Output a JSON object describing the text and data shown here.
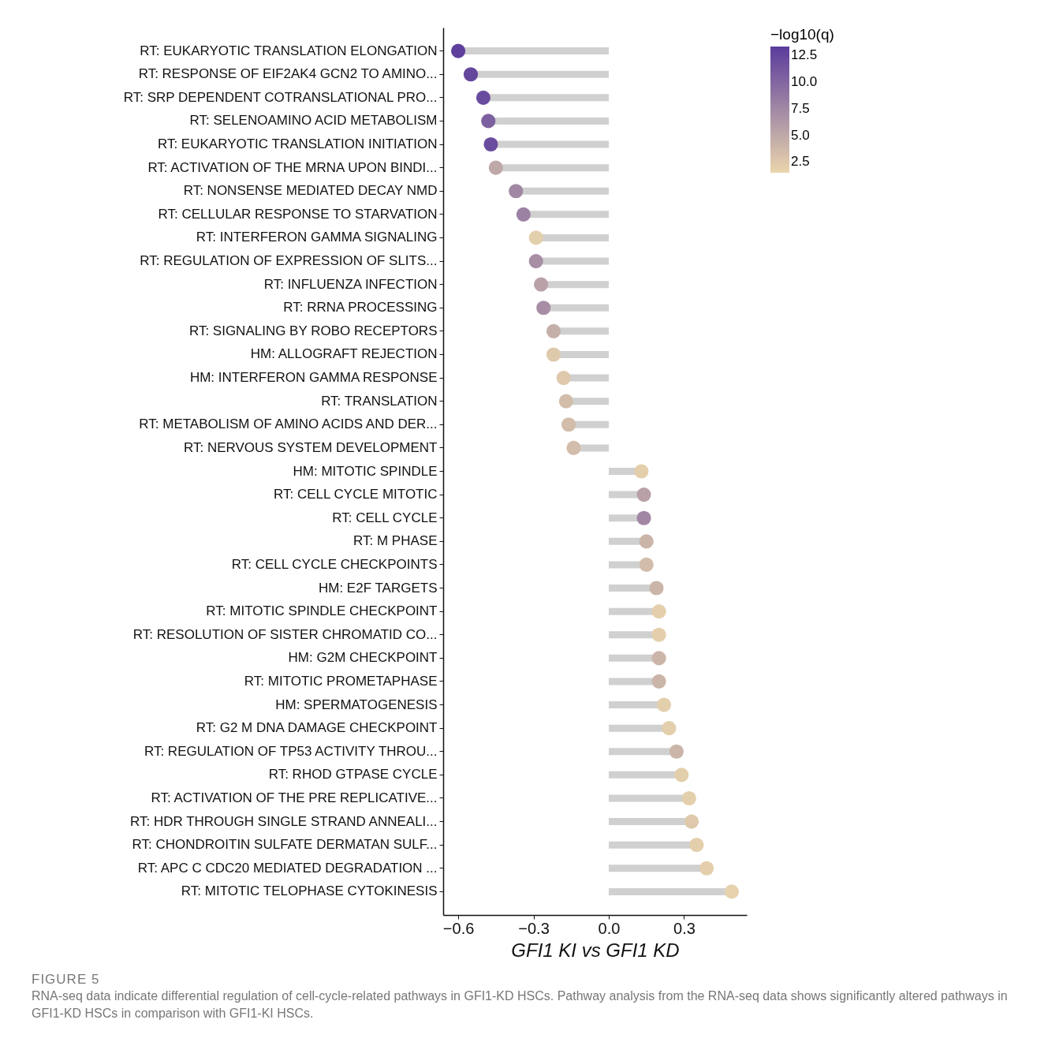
{
  "chart_data": {
    "type": "lollipop",
    "orientation": "horizontal",
    "categories": [
      "RT: EUKARYOTIC TRANSLATION ELONGATION",
      "RT: RESPONSE OF EIF2AK4 GCN2 TO AMINO...",
      "RT: SRP DEPENDENT COTRANSLATIONAL PRO...",
      "RT: SELENOAMINO ACID METABOLISM",
      "RT: EUKARYOTIC TRANSLATION INITIATION",
      "RT: ACTIVATION OF THE MRNA UPON BINDI...",
      "RT: NONSENSE MEDIATED DECAY NMD",
      "RT: CELLULAR RESPONSE TO STARVATION",
      "RT: INTERFERON GAMMA SIGNALING",
      "RT: REGULATION OF EXPRESSION OF SLITS...",
      "RT: INFLUENZA INFECTION",
      "RT: RRNA PROCESSING",
      "RT: SIGNALING BY ROBO RECEPTORS",
      "HM: ALLOGRAFT REJECTION",
      "HM: INTERFERON GAMMA RESPONSE",
      "RT: TRANSLATION",
      "RT: METABOLISM OF AMINO ACIDS AND DER...",
      "RT: NERVOUS SYSTEM DEVELOPMENT",
      "HM: MITOTIC SPINDLE",
      "RT: CELL CYCLE MITOTIC",
      "RT: CELL CYCLE",
      "RT: M PHASE",
      "RT: CELL CYCLE CHECKPOINTS",
      "HM: E2F TARGETS",
      "RT: MITOTIC SPINDLE CHECKPOINT",
      "RT: RESOLUTION OF SISTER CHROMATID CO...",
      "HM: G2M CHECKPOINT",
      "RT: MITOTIC PROMETAPHASE",
      "HM: SPERMATOGENESIS",
      "RT: G2 M DNA DAMAGE CHECKPOINT",
      "RT: REGULATION OF TP53 ACTIVITY THROU...",
      "RT: RHOD GTPASE CYCLE",
      "RT: ACTIVATION OF THE PRE REPLICATIVE...",
      "RT: HDR THROUGH SINGLE STRAND ANNEALI...",
      "RT: CHONDROITIN SULFATE DERMATAN SULF...",
      "RT: APC C CDC20 MEDIATED DEGRADATION ...",
      "RT: MITOTIC TELOPHASE CYTOKINESIS"
    ],
    "series": [
      {
        "values": [
          -0.6,
          -0.55,
          -0.5,
          -0.48,
          -0.47,
          -0.45,
          -0.37,
          -0.34,
          -0.29,
          -0.29,
          -0.27,
          -0.26,
          -0.22,
          -0.22,
          -0.18,
          -0.17,
          -0.16,
          -0.14,
          0.13,
          0.14,
          0.14,
          0.15,
          0.15,
          0.19,
          0.2,
          0.2,
          0.2,
          0.2,
          0.22,
          0.24,
          0.27,
          0.29,
          0.32,
          0.33,
          0.35,
          0.39,
          0.49
        ],
        "cvalues": [
          13,
          12.5,
          12,
          10.5,
          12,
          5,
          7.5,
          8,
          2,
          7,
          5.5,
          7,
          4.5,
          2.5,
          2.5,
          3.5,
          3.5,
          3.5,
          2,
          5.5,
          7.5,
          4,
          3.5,
          4,
          2,
          2,
          4,
          4,
          2,
          2,
          4,
          2,
          2,
          2.5,
          2,
          2,
          1.8
        ]
      }
    ],
    "xlabel": "GFI1 KI vs GFI1 KD",
    "clabel": "−log10(q)",
    "clim": [
      1.5,
      13.3
    ],
    "cticks": [
      2.5,
      {
        "value": 5,
        "label": "5.0"
      },
      7.5,
      {
        "value": 10,
        "label": "10.0"
      },
      12.5
    ],
    "colors": [
      "#ead6ad",
      "#5a3b9c"
    ],
    "xlim": [
      -0.66,
      0.55
    ],
    "xticks": [
      {
        "value": -0.6,
        "label": "−0.6"
      },
      {
        "value": -0.3,
        "label": "−0.3"
      },
      {
        "value": 0,
        "label": "0.0"
      },
      {
        "value": 0.3,
        "label": "0.3"
      }
    ],
    "grid": false,
    "annotations": [
      "FIGURE 5",
      "RNA-seq data indicate differential regulation of cell-cycle-related pathways in GFI1-KD HSCs. Pathway analysis from the RNA-seq data shows significantly altered pathways in GFI1-KD HSCs in comparison with GFI1-KI HSCs."
    ]
  }
}
